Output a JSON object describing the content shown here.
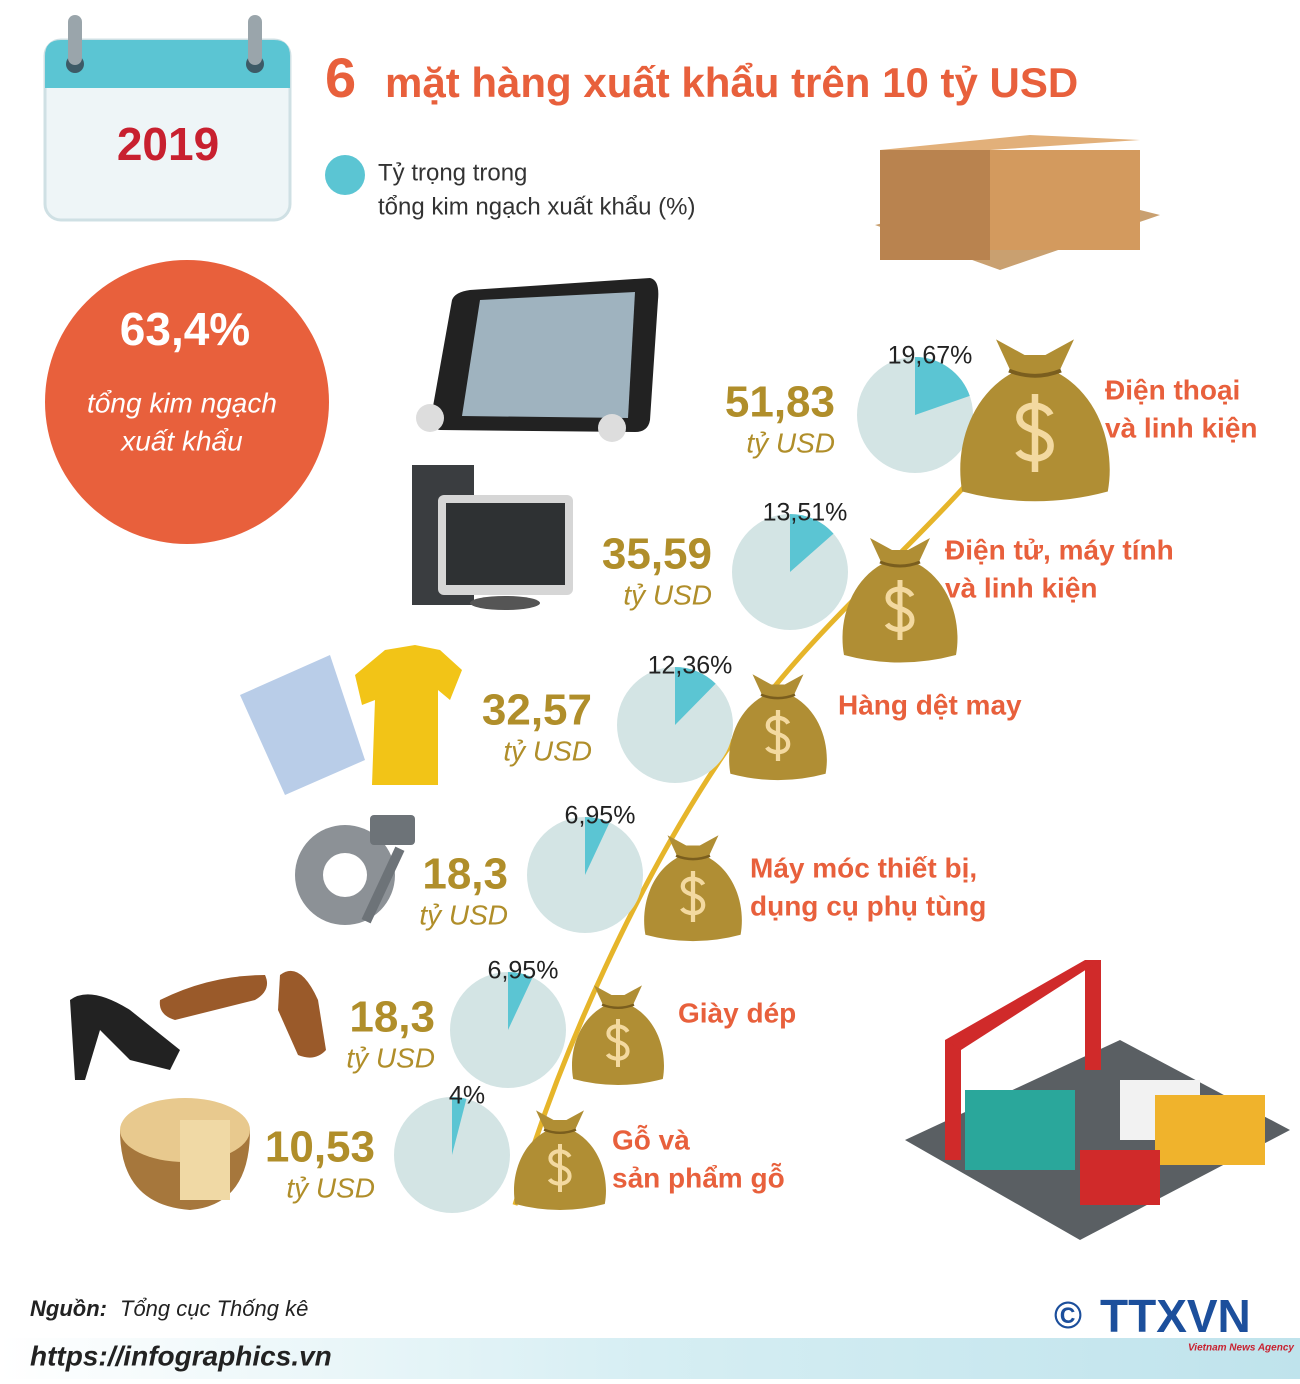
{
  "header": {
    "year": "2019",
    "title_number": "6",
    "title": "mặt hàng xuất khẩu trên 10 tỷ USD"
  },
  "legend": {
    "lines": [
      "Tỷ trọng trong",
      "tổng kim ngạch xuất khẩu (%)"
    ]
  },
  "total": {
    "value": "63,4%",
    "lines": [
      "tổng kim ngạch",
      "xuất khẩu"
    ]
  },
  "items": [
    {
      "name": [
        "Điện thoại",
        "và linh kiện"
      ],
      "value": "51,83",
      "unit": "tỷ USD",
      "share": 19.67,
      "share_label": "19,67%"
    },
    {
      "name": [
        "Điện tử, máy tính",
        "và linh kiện"
      ],
      "value": "35,59",
      "unit": "tỷ USD",
      "share": 13.51,
      "share_label": "13,51%"
    },
    {
      "name": [
        "Hàng dệt may"
      ],
      "value": "32,57",
      "unit": "tỷ USD",
      "share": 12.36,
      "share_label": "12,36%"
    },
    {
      "name": [
        "Máy móc thiết bị,",
        "dụng cụ phụ tùng"
      ],
      "value": "18,3",
      "unit": "tỷ USD",
      "share": 6.95,
      "share_label": "6,95%"
    },
    {
      "name": [
        "Giày dép"
      ],
      "value": "18,3",
      "unit": "tỷ USD",
      "share": 6.95,
      "share_label": "6,95%"
    },
    {
      "name": [
        "Gỗ và",
        "sản phẩm gỗ"
      ],
      "value": "10,53",
      "unit": "tỷ USD",
      "share": 4,
      "share_label": "4%"
    }
  ],
  "footer": {
    "source_label": "Nguồn:",
    "source": "Tổng cục Thống kê",
    "url": "https://infographics.vn",
    "copyright": "©",
    "logo": "TTXVN",
    "logo_sub": "Vietnam News Agency"
  }
}
